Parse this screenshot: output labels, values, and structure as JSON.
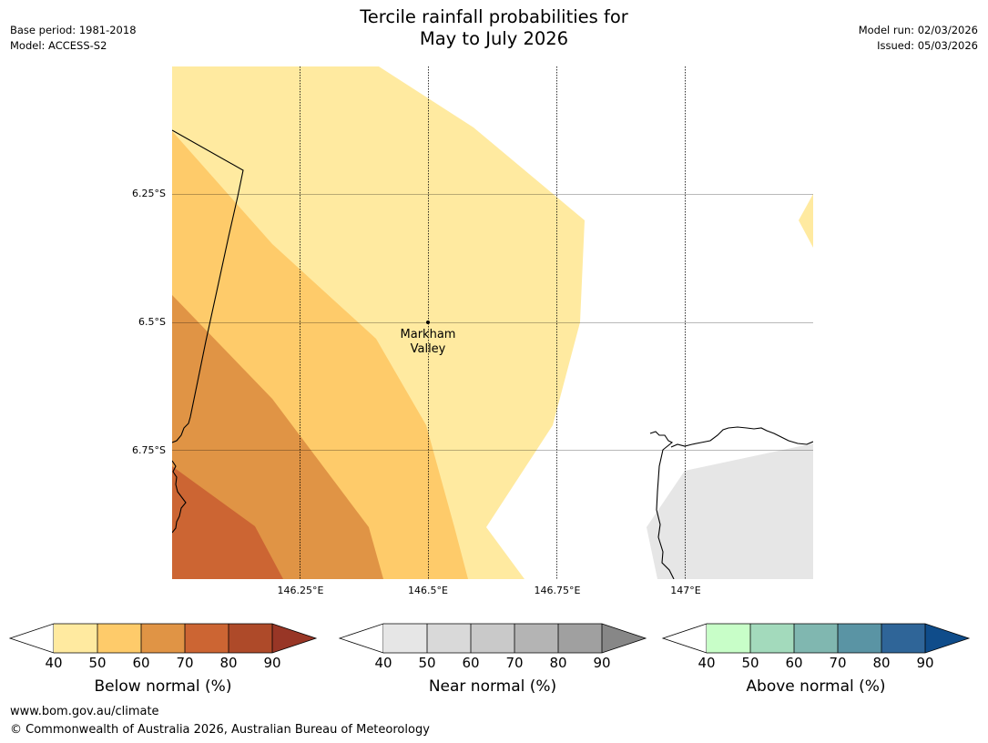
{
  "title": {
    "line1": "Tercile rainfall probabilities for",
    "line2": "May to July 2026"
  },
  "meta_left": {
    "base_period": "Base period: 1981-2018",
    "model": "Model: ACCESS-S2"
  },
  "meta_right": {
    "model_run": "Model run: 02/03/2026",
    "issued": "Issued: 05/03/2026"
  },
  "map": {
    "lat_labels": [
      "6.25°S",
      "6.5°S",
      "6.75°S"
    ],
    "lon_labels": [
      "146.25°E",
      "146.5°E",
      "146.75°E",
      "147°E"
    ],
    "place": {
      "line1": "Markham",
      "line2": "Valley"
    },
    "colors": {
      "below_40": "#ffeaa0",
      "below_50": "#fecb6a",
      "below_60": "#e09445",
      "below_70": "#cc6533",
      "near_40": "#e6e6e6",
      "land_outline": "#000000"
    }
  },
  "colorbars": [
    {
      "title": "Below normal (%)",
      "ticks": [
        "40",
        "50",
        "60",
        "70",
        "80",
        "90"
      ],
      "colors": [
        "#ffeaa0",
        "#fecb6a",
        "#e09445",
        "#cc6533",
        "#ae4a29"
      ],
      "extend_color": "#983626"
    },
    {
      "title": "Near normal (%)",
      "ticks": [
        "40",
        "50",
        "60",
        "70",
        "80",
        "90"
      ],
      "colors": [
        "#e6e6e6",
        "#d9d9d9",
        "#c9c9c9",
        "#b4b4b4",
        "#a0a0a0"
      ],
      "extend_color": "#878787"
    },
    {
      "title": "Above normal (%)",
      "ticks": [
        "40",
        "50",
        "60",
        "70",
        "80",
        "90"
      ],
      "colors": [
        "#c8fec8",
        "#a3dabc",
        "#80b7b0",
        "#5a94a4",
        "#2f6598"
      ],
      "extend_color": "#0f4c8a"
    }
  ],
  "footer": {
    "url": "www.bom.gov.au/climate",
    "copyright": "© Commonwealth of Australia 2026, Australian Bureau of Meteorology"
  }
}
